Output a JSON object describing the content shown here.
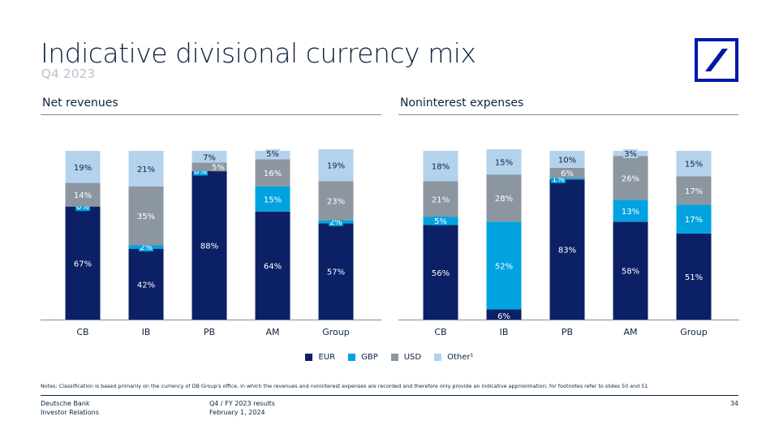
{
  "slide": {
    "title": "Indicative divisional currency mix",
    "subtitle": "Q4 2023",
    "notes": "Notes: Classification is based primarily on the currency of DB Group's office, in which the revenues and noninterest expenses are recorded and therefore only provide an indicative approximation; for footnotes refer to slides 50 and 51",
    "footer_left_1": "Deutsche Bank",
    "footer_left_2": "Investor Relations",
    "footer_mid_1": "Q4 / FY 2023 results",
    "footer_mid_2": "February 1, 2024",
    "page_number": "34"
  },
  "colors": {
    "EUR": "#0c2066",
    "GBP": "#00a3e0",
    "USD": "#8c96a0",
    "Other": "#b4d2ec"
  },
  "legend": [
    {
      "key": "EUR",
      "label": "EUR"
    },
    {
      "key": "GBP",
      "label": "GBP"
    },
    {
      "key": "USD",
      "label": "USD"
    },
    {
      "key": "Other",
      "label": "Other¹"
    }
  ],
  "chart_data": [
    {
      "type": "bar",
      "stacked": true,
      "title": "Net revenues",
      "categories": [
        "CB",
        "IB",
        "PB",
        "AM",
        "Group"
      ],
      "ylim": [
        0,
        100
      ],
      "series": [
        {
          "name": "EUR",
          "values": [
            67,
            42,
            88,
            64,
            57
          ],
          "labels": [
            "67%",
            "42%",
            "88%",
            "64%",
            "57%"
          ]
        },
        {
          "name": "GBP",
          "values": [
            0,
            2,
            0,
            15,
            2
          ],
          "labels": [
            "0%",
            "2%",
            "0%",
            "15%",
            "2%"
          ]
        },
        {
          "name": "USD",
          "values": [
            14,
            35,
            5,
            16,
            23
          ],
          "labels": [
            "14%",
            "35%",
            "5%",
            "16%",
            "23%"
          ]
        },
        {
          "name": "Other",
          "values": [
            19,
            21,
            7,
            5,
            19
          ],
          "labels": [
            "19%",
            "21%",
            "7%",
            "5%",
            "19%"
          ]
        }
      ]
    },
    {
      "type": "bar",
      "stacked": true,
      "title": "Noninterest expenses",
      "categories": [
        "CB",
        "IB",
        "PB",
        "AM",
        "Group"
      ],
      "ylim": [
        0,
        100
      ],
      "series": [
        {
          "name": "EUR",
          "values": [
            56,
            6,
            83,
            58,
            51
          ],
          "labels": [
            "56%",
            "6%",
            "83%",
            "58%",
            "51%"
          ]
        },
        {
          "name": "GBP",
          "values": [
            5,
            52,
            1,
            13,
            17
          ],
          "labels": [
            "5%",
            "52%",
            "1%",
            "13%",
            "17%"
          ]
        },
        {
          "name": "USD",
          "values": [
            21,
            28,
            6,
            26,
            17
          ],
          "labels": [
            "21%",
            "28%",
            "6%",
            "26%",
            "17%"
          ]
        },
        {
          "name": "Other",
          "values": [
            18,
            15,
            10,
            3,
            15
          ],
          "labels": [
            "18%",
            "15%",
            "10%",
            "3%",
            "15%"
          ]
        }
      ]
    }
  ]
}
